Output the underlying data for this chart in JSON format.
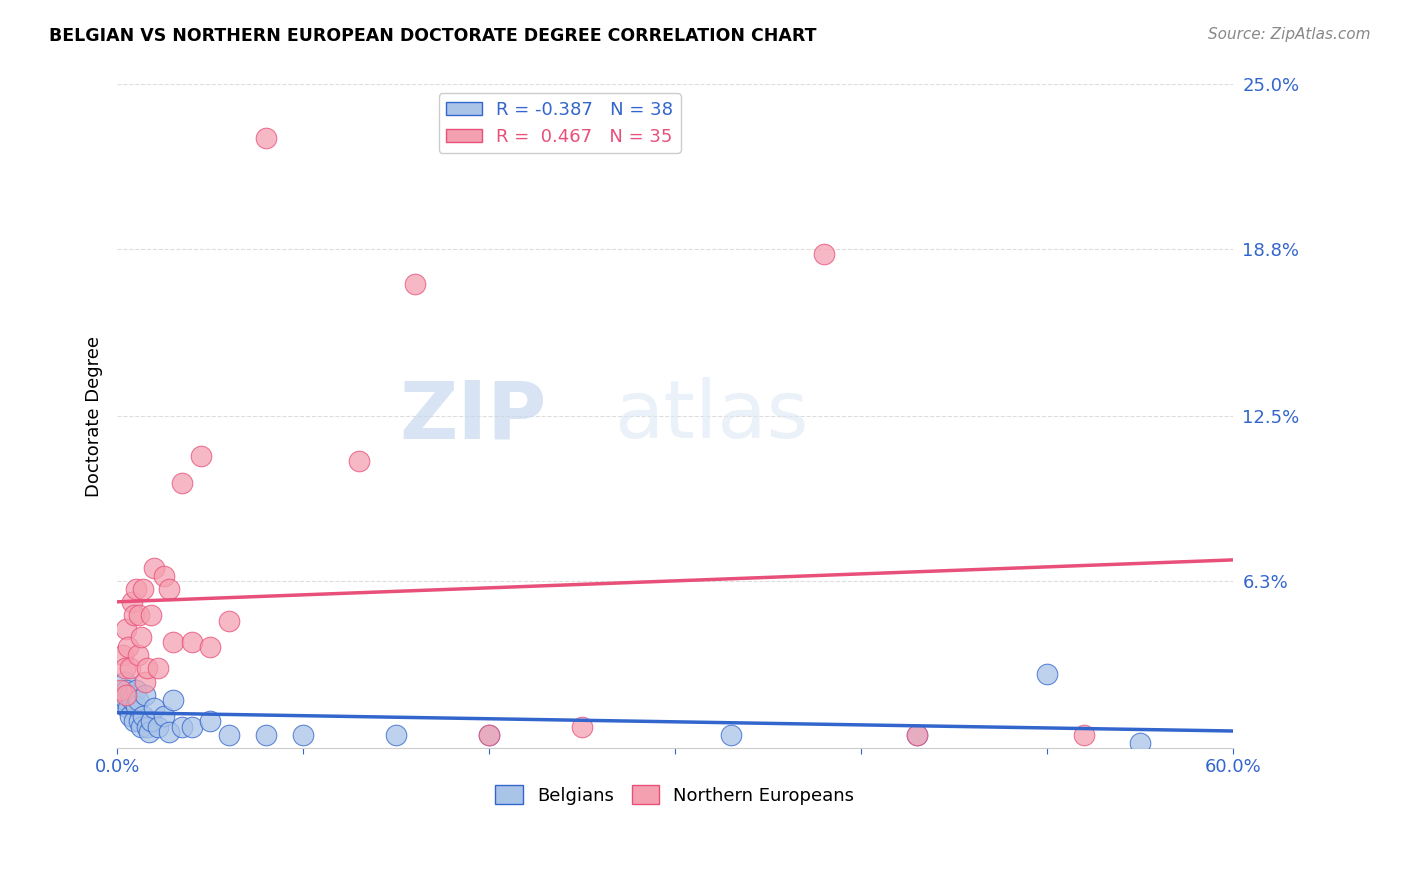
{
  "title": "BELGIAN VS NORTHERN EUROPEAN DOCTORATE DEGREE CORRELATION CHART",
  "source": "Source: ZipAtlas.com",
  "ylabel": "Doctorate Degree",
  "xlim": [
    0.0,
    0.6
  ],
  "ylim": [
    0.0,
    0.25
  ],
  "yticks": [
    0.0,
    0.063,
    0.125,
    0.188,
    0.25
  ],
  "ytick_labels": [
    "",
    "6.3%",
    "12.5%",
    "18.8%",
    "25.0%"
  ],
  "xticks": [
    0.0,
    0.1,
    0.2,
    0.3,
    0.4,
    0.5,
    0.6
  ],
  "xtick_labels": [
    "0.0%",
    "",
    "",
    "",
    "",
    "",
    "60.0%"
  ],
  "grid_color": "#dddddd",
  "background_color": "#ffffff",
  "belgian_color": "#aac4e8",
  "northern_color": "#f4a0b0",
  "belgian_line_color": "#3366cc",
  "northern_line_color": "#e8507a",
  "legend_r_belgian": "-0.387",
  "legend_n_belgian": "38",
  "legend_r_northern": "0.467",
  "legend_n_northern": "35",
  "watermark_zip": "ZIP",
  "watermark_atlas": "atlas",
  "belgians_x": [
    0.002,
    0.003,
    0.004,
    0.004,
    0.005,
    0.005,
    0.006,
    0.007,
    0.007,
    0.008,
    0.009,
    0.01,
    0.01,
    0.011,
    0.012,
    0.013,
    0.014,
    0.015,
    0.016,
    0.017,
    0.018,
    0.02,
    0.022,
    0.025,
    0.028,
    0.03,
    0.035,
    0.04,
    0.05,
    0.06,
    0.08,
    0.1,
    0.15,
    0.2,
    0.33,
    0.43,
    0.5,
    0.55
  ],
  "belgians_y": [
    0.02,
    0.018,
    0.016,
    0.025,
    0.022,
    0.018,
    0.015,
    0.02,
    0.012,
    0.018,
    0.01,
    0.022,
    0.016,
    0.018,
    0.01,
    0.008,
    0.012,
    0.02,
    0.008,
    0.006,
    0.01,
    0.015,
    0.008,
    0.012,
    0.006,
    0.018,
    0.008,
    0.008,
    0.01,
    0.005,
    0.005,
    0.005,
    0.005,
    0.005,
    0.005,
    0.005,
    0.028,
    0.002
  ],
  "northern_x": [
    0.002,
    0.003,
    0.004,
    0.005,
    0.005,
    0.006,
    0.007,
    0.008,
    0.009,
    0.01,
    0.011,
    0.012,
    0.013,
    0.014,
    0.015,
    0.016,
    0.018,
    0.02,
    0.022,
    0.025,
    0.028,
    0.03,
    0.035,
    0.04,
    0.045,
    0.05,
    0.06,
    0.08,
    0.13,
    0.16,
    0.2,
    0.25,
    0.38,
    0.43,
    0.52
  ],
  "northern_y": [
    0.022,
    0.035,
    0.03,
    0.02,
    0.045,
    0.038,
    0.03,
    0.055,
    0.05,
    0.06,
    0.035,
    0.05,
    0.042,
    0.06,
    0.025,
    0.03,
    0.05,
    0.068,
    0.03,
    0.065,
    0.06,
    0.04,
    0.1,
    0.04,
    0.11,
    0.038,
    0.048,
    0.23,
    0.108,
    0.175,
    0.005,
    0.008,
    0.186,
    0.005,
    0.005
  ]
}
